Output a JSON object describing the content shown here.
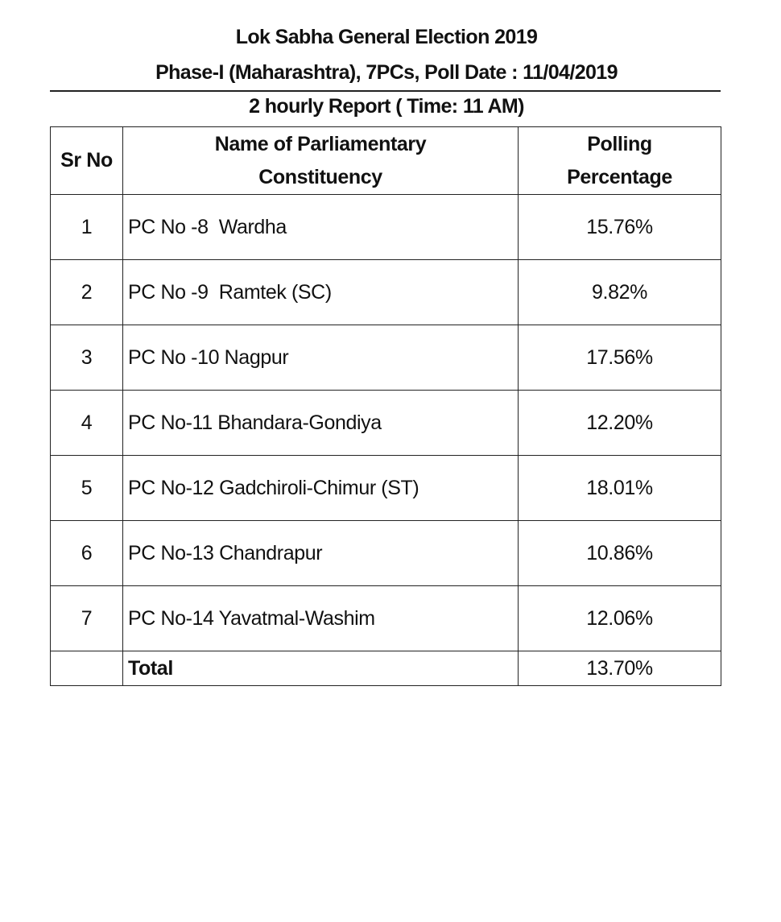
{
  "header": {
    "title": "Lok Sabha General Election 2019",
    "subtitle": "Phase-I (Maharashtra), 7PCs, Poll Date : 11/04/2019",
    "report": "2 hourly Report ( Time: 11 AM)"
  },
  "table": {
    "columns": [
      "Sr No",
      "Name of Parliamentary Constituency",
      "Polling Percentage"
    ],
    "column_lines": [
      [
        "Sr No"
      ],
      [
        "Name of Parliamentary",
        "Constituency"
      ],
      [
        "Polling",
        "Percentage"
      ]
    ],
    "rows": [
      {
        "sr": "1",
        "name": "PC No -8  Wardha",
        "pct": "15.76%"
      },
      {
        "sr": "2",
        "name": "PC No -9  Ramtek (SC)",
        "pct": "9.82%"
      },
      {
        "sr": "3",
        "name": "PC No -10 Nagpur",
        "pct": "17.56%"
      },
      {
        "sr": "4",
        "name": "PC No-11 Bhandara-Gondiya",
        "pct": "12.20%"
      },
      {
        "sr": "5",
        "name": "PC No-12 Gadchiroli-Chimur (ST)",
        "pct": "18.01%"
      },
      {
        "sr": "6",
        "name": "PC No-13 Chandrapur",
        "pct": "10.86%"
      },
      {
        "sr": "7",
        "name": "PC No-14 Yavatmal-Washim",
        "pct": "12.06%"
      }
    ],
    "total": {
      "label": "Total",
      "pct": "13.70%"
    }
  }
}
